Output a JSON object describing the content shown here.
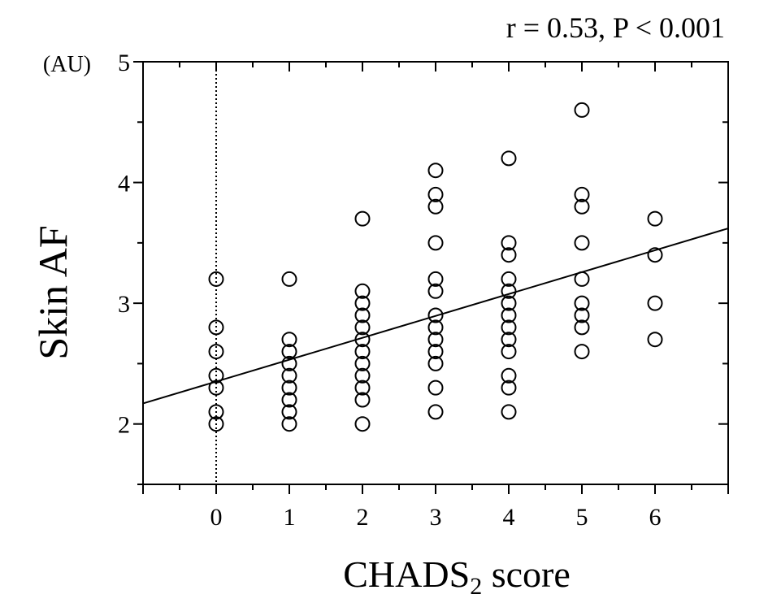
{
  "chart_data": {
    "type": "scatter",
    "title": "",
    "annotation": "r = 0.53, P < 0.001",
    "ylabel": "Skin AF",
    "yunit": "(AU)",
    "xlabel_main": "CHADS",
    "xlabel_sub": "2",
    "xlabel_tail": " score",
    "xlim": [
      -1,
      7
    ],
    "ylim": [
      1.5,
      5
    ],
    "xticks": [
      0,
      1,
      2,
      3,
      4,
      5,
      6
    ],
    "xtick_labels": [
      "0",
      "1",
      "2",
      "3",
      "4",
      "5",
      "6"
    ],
    "yticks": [
      2,
      3,
      4,
      5
    ],
    "ytick_labels": [
      "2",
      "3",
      "4",
      "5"
    ],
    "grid": false,
    "reference_line": {
      "style": "dotted",
      "x": 0
    },
    "regression": {
      "x": [
        -1,
        7
      ],
      "y": [
        2.17,
        3.62
      ]
    },
    "series": [
      {
        "marker": "open-circle",
        "points": [
          [
            0,
            3.2
          ],
          [
            0,
            2.8
          ],
          [
            0,
            2.6
          ],
          [
            0,
            2.4
          ],
          [
            0,
            2.3
          ],
          [
            0,
            2.1
          ],
          [
            0,
            2.0
          ],
          [
            1,
            3.2
          ],
          [
            1,
            2.7
          ],
          [
            1,
            2.6
          ],
          [
            1,
            2.5
          ],
          [
            1,
            2.4
          ],
          [
            1,
            2.3
          ],
          [
            1,
            2.2
          ],
          [
            1,
            2.1
          ],
          [
            1,
            2.0
          ],
          [
            2,
            3.7
          ],
          [
            2,
            3.1
          ],
          [
            2,
            3.0
          ],
          [
            2,
            2.9
          ],
          [
            2,
            2.8
          ],
          [
            2,
            2.7
          ],
          [
            2,
            2.6
          ],
          [
            2,
            2.5
          ],
          [
            2,
            2.4
          ],
          [
            2,
            2.3
          ],
          [
            2,
            2.2
          ],
          [
            2,
            2.0
          ],
          [
            3,
            4.1
          ],
          [
            3,
            3.9
          ],
          [
            3,
            3.8
          ],
          [
            3,
            3.5
          ],
          [
            3,
            3.2
          ],
          [
            3,
            3.1
          ],
          [
            3,
            2.9
          ],
          [
            3,
            2.8
          ],
          [
            3,
            2.7
          ],
          [
            3,
            2.6
          ],
          [
            3,
            2.5
          ],
          [
            3,
            2.3
          ],
          [
            3,
            2.1
          ],
          [
            4,
            4.2
          ],
          [
            4,
            3.5
          ],
          [
            4,
            3.4
          ],
          [
            4,
            3.2
          ],
          [
            4,
            3.1
          ],
          [
            4,
            3.0
          ],
          [
            4,
            2.9
          ],
          [
            4,
            2.8
          ],
          [
            4,
            2.7
          ],
          [
            4,
            2.6
          ],
          [
            4,
            2.4
          ],
          [
            4,
            2.3
          ],
          [
            4,
            2.1
          ],
          [
            5,
            4.6
          ],
          [
            5,
            3.9
          ],
          [
            5,
            3.8
          ],
          [
            5,
            3.5
          ],
          [
            5,
            3.2
          ],
          [
            5,
            3.0
          ],
          [
            5,
            2.9
          ],
          [
            5,
            2.8
          ],
          [
            5,
            2.6
          ],
          [
            6,
            3.7
          ],
          [
            6,
            3.4
          ],
          [
            6,
            3.0
          ],
          [
            6,
            2.7
          ]
        ]
      }
    ]
  }
}
